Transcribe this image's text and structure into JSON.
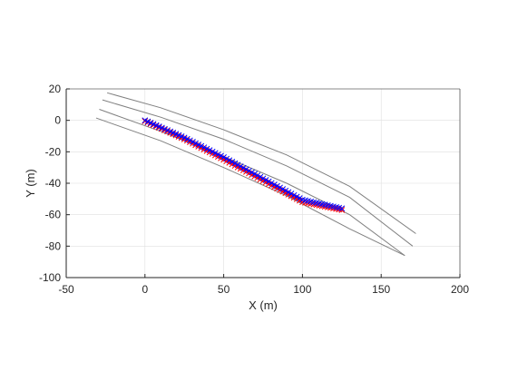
{
  "chart_data": {
    "type": "scatter",
    "title": "",
    "xlabel": "X (m)",
    "ylabel": "Y (m)",
    "xlim": [
      -50,
      200
    ],
    "ylim": [
      -100,
      20
    ],
    "xticks": [
      -50,
      0,
      50,
      100,
      150,
      200
    ],
    "yticks": [
      20,
      0,
      -20,
      -40,
      -60,
      -80,
      -100
    ],
    "xtick_labels": [
      "-50",
      "0",
      "50",
      "100",
      "150",
      "200"
    ],
    "ytick_labels": [
      "20",
      "0",
      "-20",
      "-40",
      "-60",
      "-80",
      "-100"
    ],
    "grid": true,
    "legend": "none",
    "lines": [
      {
        "x": [
          -24,
          10,
          50,
          90,
          130,
          172
        ],
        "y": [
          17.5,
          8,
          -6,
          -22,
          -42,
          -72
        ],
        "color": "#808080"
      },
      {
        "x": [
          -27,
          10,
          50,
          90,
          130,
          170
        ],
        "y": [
          13,
          2,
          -12,
          -29,
          -49,
          -80
        ],
        "color": "#808080"
      },
      {
        "x": [
          -29,
          10,
          50,
          90,
          130,
          165
        ],
        "y": [
          7,
          -7,
          -23,
          -40,
          -60,
          -86
        ],
        "color": "#808080"
      },
      {
        "x": [
          -31,
          10,
          50,
          90,
          130,
          165
        ],
        "y": [
          1.5,
          -13,
          -30,
          -48,
          -69,
          -86
        ],
        "color": "#808080"
      }
    ],
    "series": [
      {
        "marker": "x",
        "color": "#ff0000",
        "x": [
          0,
          25,
          50,
          75,
          100,
          125
        ],
        "y": [
          -0.5,
          -12,
          -25,
          -38.5,
          -52,
          -57
        ]
      },
      {
        "marker": "x",
        "color": "#0000ff",
        "x": [
          0,
          25,
          50,
          75,
          100,
          125
        ],
        "y": [
          0,
          -11,
          -23.5,
          -37,
          -50.5,
          -56
        ]
      }
    ]
  }
}
